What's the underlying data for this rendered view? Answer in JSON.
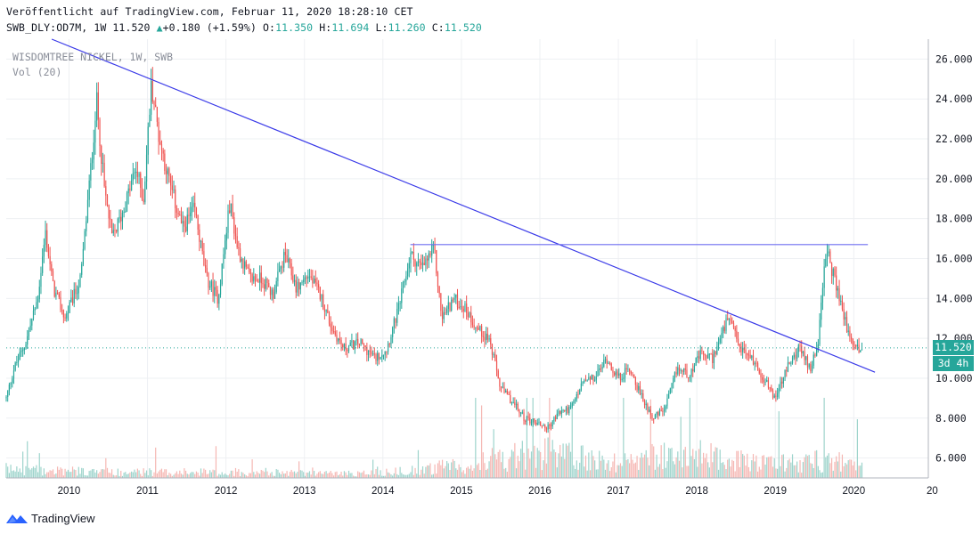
{
  "header": {
    "published": "Veröffentlicht auf TradingView.com, Februar 11, 2020 18:28:10 CET",
    "symbol_line_prefix": "SWB_DLY:OD7M, 1W 11.520",
    "change_arrow": "▲",
    "change": "+0.180 (+1.59%)",
    "o_label": "O:",
    "o": "11.350",
    "h_label": "H:",
    "h": "11.694",
    "l_label": "L:",
    "l": "11.260",
    "c_label": "C:",
    "c": "11.520"
  },
  "watermark": {
    "title": "WISDOMTREE NICKEL, 1W, SWB",
    "volume": "Vol (20)"
  },
  "price_label": "11.520",
  "countdown_label": "3d 4h",
  "footer": {
    "brand": "TradingView",
    "logo_icon": "tradingview-logo-icon"
  },
  "colors": {
    "up": "#26a69a",
    "down": "#ef5350",
    "up_volume": "#9ed4cc",
    "down_volume": "#f5b7b3",
    "trendline": "#3a3ae8",
    "resistance": "#6e6ef0",
    "price_line": "#26a69a"
  },
  "chart_data": {
    "type": "candlestick",
    "title": "WISDOMTREE NICKEL, 1W, SWB",
    "xlabel": "",
    "ylabel": "",
    "x_range": [
      2009.2,
      2020.95
    ],
    "ylim": [
      5.0,
      27.0
    ],
    "y_ticks": [
      "26.000",
      "24.000",
      "22.000",
      "20.000",
      "18.000",
      "16.000",
      "14.000",
      "12.000",
      "10.000",
      "8.000",
      "6.000"
    ],
    "x_ticks": [
      "2010",
      "2011",
      "2012",
      "2013",
      "2014",
      "2015",
      "2016",
      "2017",
      "2018",
      "2019",
      "2020",
      "20"
    ],
    "last_price": 11.52,
    "grid": true,
    "close_path": [
      [
        2009.2,
        9.0
      ],
      [
        2009.3,
        10.5
      ],
      [
        2009.45,
        11.8
      ],
      [
        2009.6,
        14.0
      ],
      [
        2009.7,
        17.3
      ],
      [
        2009.8,
        14.5
      ],
      [
        2009.95,
        13.0
      ],
      [
        2010.15,
        15.0
      ],
      [
        2010.3,
        21.5
      ],
      [
        2010.35,
        24.0
      ],
      [
        2010.45,
        19.5
      ],
      [
        2010.55,
        17.0
      ],
      [
        2010.7,
        18.5
      ],
      [
        2010.85,
        20.5
      ],
      [
        2010.95,
        19.0
      ],
      [
        2011.05,
        24.8
      ],
      [
        2011.15,
        22.0
      ],
      [
        2011.3,
        19.5
      ],
      [
        2011.45,
        17.5
      ],
      [
        2011.6,
        18.5
      ],
      [
        2011.75,
        15.0
      ],
      [
        2011.9,
        14.0
      ],
      [
        2012.05,
        18.8
      ],
      [
        2012.15,
        16.5
      ],
      [
        2012.3,
        15.0
      ],
      [
        2012.45,
        15.0
      ],
      [
        2012.6,
        14.2
      ],
      [
        2012.75,
        16.2
      ],
      [
        2012.9,
        14.5
      ],
      [
        2013.05,
        15.2
      ],
      [
        2013.2,
        14.2
      ],
      [
        2013.35,
        12.5
      ],
      [
        2013.5,
        11.5
      ],
      [
        2013.7,
        11.8
      ],
      [
        2013.9,
        11.0
      ],
      [
        2014.05,
        11.5
      ],
      [
        2014.2,
        13.5
      ],
      [
        2014.35,
        16.2
      ],
      [
        2014.5,
        15.5
      ],
      [
        2014.65,
        16.5
      ],
      [
        2014.75,
        13.0
      ],
      [
        2014.9,
        14.0
      ],
      [
        2015.05,
        13.5
      ],
      [
        2015.2,
        12.5
      ],
      [
        2015.35,
        12.0
      ],
      [
        2015.5,
        9.5
      ],
      [
        2015.65,
        8.8
      ],
      [
        2015.8,
        8.0
      ],
      [
        2015.95,
        7.8
      ],
      [
        2016.1,
        7.5
      ],
      [
        2016.25,
        8.3
      ],
      [
        2016.4,
        8.5
      ],
      [
        2016.55,
        9.8
      ],
      [
        2016.7,
        10.0
      ],
      [
        2016.85,
        11.0
      ],
      [
        2017.0,
        10.0
      ],
      [
        2017.15,
        10.5
      ],
      [
        2017.3,
        9.0
      ],
      [
        2017.45,
        8.0
      ],
      [
        2017.6,
        8.5
      ],
      [
        2017.75,
        10.5
      ],
      [
        2017.9,
        10.2
      ],
      [
        2018.05,
        11.2
      ],
      [
        2018.2,
        11.0
      ],
      [
        2018.4,
        13.0
      ],
      [
        2018.55,
        11.5
      ],
      [
        2018.7,
        11.0
      ],
      [
        2018.85,
        10.0
      ],
      [
        2019.0,
        9.0
      ],
      [
        2019.15,
        10.5
      ],
      [
        2019.3,
        11.5
      ],
      [
        2019.45,
        10.5
      ],
      [
        2019.55,
        12.0
      ],
      [
        2019.65,
        16.5
      ],
      [
        2019.75,
        15.0
      ],
      [
        2019.85,
        13.5
      ],
      [
        2019.95,
        12.0
      ],
      [
        2020.05,
        11.5
      ],
      [
        2020.11,
        11.52
      ]
    ],
    "volume_profile": [
      [
        2009.2,
        0.9
      ],
      [
        2010.5,
        0.6
      ],
      [
        2012.0,
        0.6
      ],
      [
        2013.5,
        0.45
      ],
      [
        2014.3,
        0.7
      ],
      [
        2015.0,
        1.3
      ],
      [
        2015.5,
        2.0
      ],
      [
        2016.0,
        2.6
      ],
      [
        2016.5,
        2.0
      ],
      [
        2017.0,
        1.6
      ],
      [
        2017.5,
        2.2
      ],
      [
        2018.0,
        2.4
      ],
      [
        2018.5,
        1.7
      ],
      [
        2019.0,
        1.4
      ],
      [
        2019.5,
        1.8
      ],
      [
        2020.1,
        1.4
      ]
    ],
    "trendline": [
      [
        2009.78,
        27.0
      ],
      [
        2020.27,
        10.3
      ]
    ],
    "resistance": [
      [
        2014.35,
        16.7
      ],
      [
        2020.18,
        16.7
      ]
    ]
  }
}
